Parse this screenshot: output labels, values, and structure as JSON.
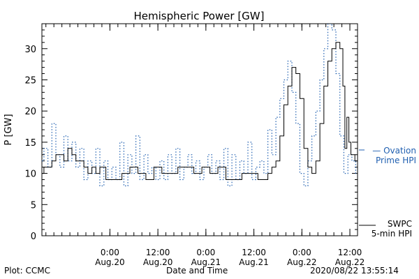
{
  "footer": {
    "credit": "Plot: CCMC",
    "x_axis_label": "Date and Time",
    "timestamp": "2020/08/22 13:55:14"
  },
  "chart_data": {
    "type": "line",
    "title": "Hemispheric Power [GW]",
    "xlabel": "Date and Time",
    "ylabel": "P [GW]",
    "xlim": [
      "2020-08-19 07:00",
      "2020-08-22 13:55"
    ],
    "ylim": [
      0,
      34
    ],
    "yticks": [
      0,
      5,
      10,
      15,
      20,
      25,
      30
    ],
    "xticks": [
      {
        "time": "2020-08-20 00:00",
        "label": [
          "0:00",
          "Aug.20"
        ]
      },
      {
        "time": "2020-08-20 12:00",
        "label": [
          "12:00",
          "Aug.20"
        ]
      },
      {
        "time": "2020-08-21 00:00",
        "label": [
          "0:00",
          "Aug.21"
        ]
      },
      {
        "time": "2020-08-21 12:00",
        "label": [
          "12:00",
          "Aug.21"
        ]
      },
      {
        "time": "2020-08-22 00:00",
        "label": [
          "0:00",
          "Aug.22"
        ]
      },
      {
        "time": "2020-08-22 12:00",
        "label": [
          "12:00",
          "Aug.22"
        ]
      }
    ],
    "grid": false,
    "legend_position": "right",
    "series": [
      {
        "name": "SWPC 5-min HPI",
        "legend_lines": [
          "SWPC",
          "5-min HPI"
        ],
        "color": "#000000",
        "style": "solid",
        "x": [
          "2020-08-19 07:00",
          "2020-08-19 08:00",
          "2020-08-19 09:00",
          "2020-08-19 10:00",
          "2020-08-19 11:00",
          "2020-08-19 12:00",
          "2020-08-19 13:00",
          "2020-08-19 14:00",
          "2020-08-19 15:00",
          "2020-08-19 16:00",
          "2020-08-19 17:00",
          "2020-08-19 18:00",
          "2020-08-19 19:00",
          "2020-08-19 20:00",
          "2020-08-19 21:00",
          "2020-08-19 22:00",
          "2020-08-20 00:00",
          "2020-08-20 02:00",
          "2020-08-20 04:00",
          "2020-08-20 06:00",
          "2020-08-20 08:00",
          "2020-08-20 10:00",
          "2020-08-20 12:00",
          "2020-08-20 14:00",
          "2020-08-20 16:00",
          "2020-08-20 18:00",
          "2020-08-20 20:00",
          "2020-08-20 22:00",
          "2020-08-21 00:00",
          "2020-08-21 02:00",
          "2020-08-21 04:00",
          "2020-08-21 06:00",
          "2020-08-21 08:00",
          "2020-08-21 10:00",
          "2020-08-21 12:00",
          "2020-08-21 14:00",
          "2020-08-21 15:00",
          "2020-08-21 16:00",
          "2020-08-21 17:00",
          "2020-08-21 18:00",
          "2020-08-21 19:00",
          "2020-08-21 20:00",
          "2020-08-21 21:00",
          "2020-08-21 22:00",
          "2020-08-21 23:00",
          "2020-08-22 00:00",
          "2020-08-22 01:00",
          "2020-08-22 02:00",
          "2020-08-22 03:00",
          "2020-08-22 04:00",
          "2020-08-22 05:00",
          "2020-08-22 06:00",
          "2020-08-22 07:00",
          "2020-08-22 08:00",
          "2020-08-22 09:00",
          "2020-08-22 10:00",
          "2020-08-22 10:30",
          "2020-08-22 11:00",
          "2020-08-22 11:30",
          "2020-08-22 12:00",
          "2020-08-22 12:30",
          "2020-08-22 13:00",
          "2020-08-22 13:30",
          "2020-08-22 13:55"
        ],
        "y": [
          10,
          11,
          11,
          12,
          13,
          13,
          12,
          14,
          13,
          12,
          12,
          11,
          10,
          11,
          10,
          11,
          9,
          9,
          10,
          11,
          10,
          9,
          11,
          10,
          10,
          11,
          11,
          10,
          11,
          10,
          11,
          9,
          9,
          10,
          10,
          9,
          9,
          10,
          11,
          12,
          16,
          21,
          24,
          27,
          26,
          22,
          14,
          11,
          10,
          12,
          18,
          24,
          28,
          30,
          31,
          30,
          24,
          14,
          19,
          15,
          13,
          13,
          12,
          12
        ]
      },
      {
        "name": "Ovation Prime HPI",
        "legend_lines": [
          "— Ovation",
          "Prime HPI"
        ],
        "color": "#1f5fb0",
        "style": "dotted",
        "x": [
          "2020-08-19 07:00",
          "2020-08-19 08:00",
          "2020-08-19 09:00",
          "2020-08-19 10:00",
          "2020-08-19 11:00",
          "2020-08-19 12:00",
          "2020-08-19 13:00",
          "2020-08-19 14:00",
          "2020-08-19 15:00",
          "2020-08-19 16:00",
          "2020-08-19 17:00",
          "2020-08-19 18:00",
          "2020-08-19 19:00",
          "2020-08-19 20:00",
          "2020-08-19 21:00",
          "2020-08-19 22:00",
          "2020-08-19 23:00",
          "2020-08-20 00:00",
          "2020-08-20 01:00",
          "2020-08-20 02:00",
          "2020-08-20 03:00",
          "2020-08-20 04:00",
          "2020-08-20 05:00",
          "2020-08-20 06:00",
          "2020-08-20 07:00",
          "2020-08-20 08:00",
          "2020-08-20 09:00",
          "2020-08-20 10:00",
          "2020-08-20 11:00",
          "2020-08-20 12:00",
          "2020-08-20 13:00",
          "2020-08-20 14:00",
          "2020-08-20 15:00",
          "2020-08-20 16:00",
          "2020-08-20 17:00",
          "2020-08-20 18:00",
          "2020-08-20 19:00",
          "2020-08-20 20:00",
          "2020-08-20 21:00",
          "2020-08-20 22:00",
          "2020-08-20 23:00",
          "2020-08-21 00:00",
          "2020-08-21 01:00",
          "2020-08-21 02:00",
          "2020-08-21 03:00",
          "2020-08-21 04:00",
          "2020-08-21 05:00",
          "2020-08-21 06:00",
          "2020-08-21 07:00",
          "2020-08-21 08:00",
          "2020-08-21 09:00",
          "2020-08-21 10:00",
          "2020-08-21 11:00",
          "2020-08-21 12:00",
          "2020-08-21 13:00",
          "2020-08-21 14:00",
          "2020-08-21 15:00",
          "2020-08-21 16:00",
          "2020-08-21 17:00",
          "2020-08-21 18:00",
          "2020-08-21 19:00",
          "2020-08-21 20:00",
          "2020-08-21 21:00",
          "2020-08-21 22:00",
          "2020-08-21 23:00",
          "2020-08-22 00:00",
          "2020-08-22 01:00",
          "2020-08-22 02:00",
          "2020-08-22 03:00",
          "2020-08-22 04:00",
          "2020-08-22 05:00",
          "2020-08-22 06:00",
          "2020-08-22 07:00",
          "2020-08-22 08:00",
          "2020-08-22 09:00",
          "2020-08-22 10:00",
          "2020-08-22 11:00",
          "2020-08-22 12:00",
          "2020-08-22 13:00",
          "2020-08-22 13:55"
        ],
        "y": [
          12,
          14,
          11,
          18,
          13,
          11,
          16,
          12,
          15,
          11,
          14,
          9,
          12,
          10,
          14,
          8,
          12,
          9,
          11,
          9,
          15,
          8,
          13,
          10,
          16,
          9,
          13,
          10,
          11,
          9,
          12,
          9,
          13,
          10,
          14,
          9,
          11,
          13,
          10,
          12,
          9,
          11,
          13,
          10,
          12,
          9,
          14,
          8,
          13,
          9,
          12,
          10,
          15,
          9,
          11,
          12,
          10,
          17,
          13,
          19,
          22,
          25,
          28,
          23,
          18,
          10,
          8,
          12,
          16,
          20,
          25,
          30,
          34,
          33,
          26,
          16,
          10,
          13,
          12,
          10
        ]
      }
    ]
  }
}
